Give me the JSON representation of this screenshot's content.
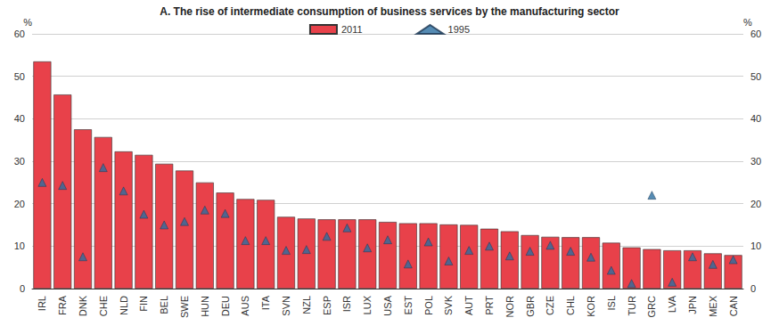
{
  "chart_data": {
    "type": "bar",
    "title": "A. The rise of intermediate consumption of business services by the manufacturing sector",
    "ylabel": "%",
    "y2label": "%",
    "categories": [
      "IRL",
      "FRA",
      "DNK",
      "CHE",
      "NLD",
      "FIN",
      "BEL",
      "SWE",
      "HUN",
      "DEU",
      "AUS",
      "ITA",
      "SVN",
      "NZL",
      "ESP",
      "ISR",
      "LUX",
      "USA",
      "EST",
      "POL",
      "SVK",
      "AUT",
      "PRT",
      "NOR",
      "GBR",
      "CZE",
      "CHL",
      "KOR",
      "ISL",
      "TUR",
      "GRC",
      "LVA",
      "JPN",
      "MEX",
      "CAN"
    ],
    "series": [
      {
        "name": "2011",
        "type": "bar",
        "color": "#e8414a",
        "values": [
          53.5,
          45.7,
          37.5,
          35.7,
          32.3,
          31.5,
          29.4,
          27.8,
          25.0,
          22.6,
          21.1,
          20.9,
          16.9,
          16.5,
          16.3,
          16.3,
          16.3,
          15.7,
          15.4,
          15.4,
          15.1,
          15.0,
          14.1,
          13.5,
          12.6,
          12.2,
          12.1,
          12.1,
          10.8,
          9.7,
          9.3,
          9.0,
          9.0,
          8.3,
          7.9
        ]
      },
      {
        "name": "1995",
        "type": "scatter",
        "marker": "triangle",
        "color": "#2b6ea0",
        "values": [
          25.0,
          24.3,
          7.5,
          28.5,
          23.0,
          17.5,
          15.0,
          15.8,
          18.5,
          17.7,
          11.3,
          11.3,
          9.0,
          9.2,
          12.3,
          14.3,
          9.6,
          11.5,
          5.8,
          11.0,
          6.5,
          9.0,
          10.0,
          7.7,
          8.8,
          10.2,
          8.8,
          7.4,
          4.3,
          1.2,
          22.0,
          1.5,
          7.5,
          5.7,
          6.8
        ]
      }
    ],
    "ylim": [
      0,
      60
    ],
    "yticks": [
      0,
      10,
      20,
      30,
      40,
      50,
      60
    ],
    "y2lim": [
      0,
      60
    ],
    "y2ticks": [
      0,
      10,
      20,
      30,
      40,
      50,
      60
    ],
    "grid": true,
    "legend": "top"
  }
}
